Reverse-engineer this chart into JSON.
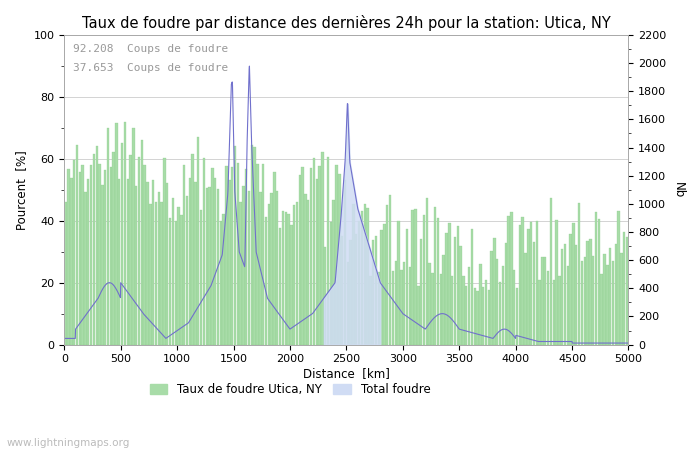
{
  "title": "Taux de foudre par distance des dernières 24h pour la station: Utica, NY",
  "xlabel": "Distance  [km]",
  "ylabel_left": "Pourcent  [%]",
  "ylabel_right": "Nb",
  "annotation_line1": "92.208  Coups de foudre",
  "annotation_line2": "37.653  Coups de foudre",
  "xlim": [
    0,
    5000
  ],
  "ylim_left": [
    0,
    100
  ],
  "ylim_right": [
    0,
    2200
  ],
  "xticks": [
    0,
    500,
    1000,
    1500,
    2000,
    2500,
    3000,
    3500,
    4000,
    4500,
    5000
  ],
  "yticks_left": [
    0,
    20,
    40,
    60,
    80,
    100
  ],
  "yticks_right": [
    0,
    200,
    400,
    600,
    800,
    1000,
    1200,
    1400,
    1600,
    1800,
    2000,
    2200
  ],
  "bar_color": "#a8dca8",
  "bar_edge_color": "#88cc88",
  "fill_color": "#d0dcf4",
  "line_color": "#7070cc",
  "legend_label_bar": "Taux de foudre Utica, NY",
  "legend_label_fill": "Total foudre",
  "watermark": "www.lightningmaps.org",
  "title_fontsize": 10.5,
  "label_fontsize": 8.5,
  "tick_fontsize": 8,
  "annotation_fontsize": 8,
  "watermark_fontsize": 7.5,
  "grid_color": "#cccccc",
  "n_bars": 200
}
